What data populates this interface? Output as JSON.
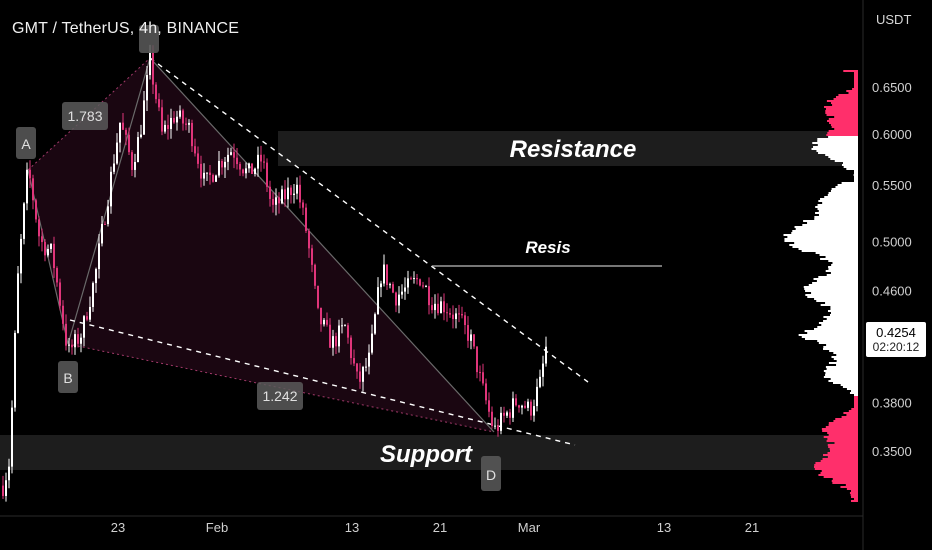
{
  "header": {
    "title": "GMT / TetherUS, 4h, BINANCE",
    "currency": "USDT"
  },
  "price_box": {
    "price": "0.4254",
    "countdown": "02:20:12"
  },
  "colors": {
    "background": "#000000",
    "up_candle": "#ffffff",
    "down_candle": "#e0357a",
    "volume_profile_high": "#ff2f6b"
  },
  "chart_data": {
    "type": "candlestick",
    "x_ticks": [
      "23",
      "Feb",
      "13",
      "21",
      "Mar",
      "13",
      "21"
    ],
    "y_ticks": [
      "0.6500",
      "0.6000",
      "0.5500",
      "0.5000",
      "0.4600",
      "0.3800",
      "0.3500"
    ],
    "ylim": [
      0.32,
      0.7
    ],
    "scale": "log",
    "grid": false,
    "pattern": {
      "name": "XABCD",
      "points": [
        {
          "label": "A",
          "price": 0.566
        },
        {
          "label": "B",
          "price": 0.413
        },
        {
          "label": "",
          "price": 0.678
        },
        {
          "label": "D",
          "price": 0.355
        }
      ],
      "ratios": [
        "1.783",
        "1.242"
      ]
    },
    "zones": [
      {
        "label": "Resistance",
        "from": 0.568,
        "to": 0.604
      },
      {
        "label": "Support",
        "from": 0.335,
        "to": 0.362
      }
    ],
    "levels": [
      {
        "label": "Resis",
        "price": 0.475
      }
    ],
    "trendlines": [
      {
        "from": 0.678,
        "to": 0.392
      },
      {
        "from": 0.408,
        "to": 0.358
      }
    ],
    "last_price": 0.4254
  }
}
